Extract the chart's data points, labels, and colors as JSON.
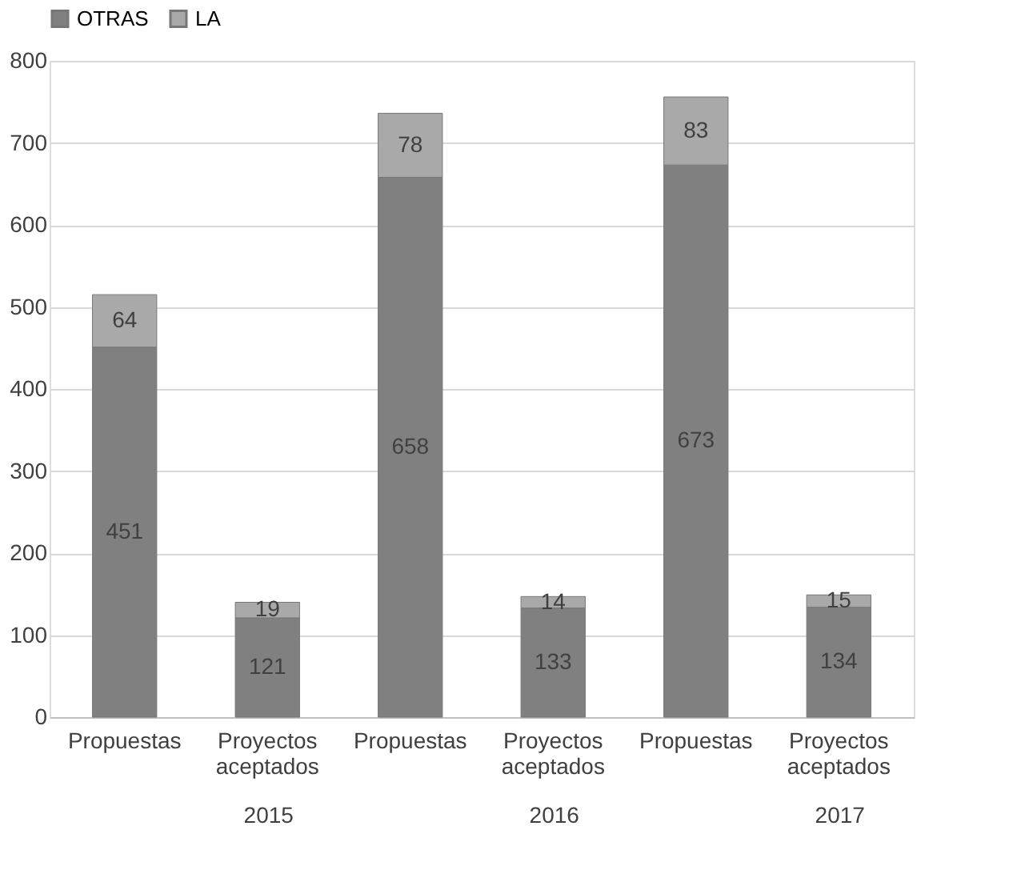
{
  "chart_data": {
    "type": "bar",
    "stacked": true,
    "categories": [
      "Propuestas",
      "Proyectos aceptados",
      "Propuestas",
      "Proyectos aceptados",
      "Propuestas",
      "Proyectos aceptados"
    ],
    "series": [
      {
        "name": "OTRAS",
        "color": "#808080",
        "values": [
          451,
          121,
          658,
          133,
          673,
          134
        ]
      },
      {
        "name": "LA",
        "color": "#a9a9a9",
        "values": [
          64,
          19,
          78,
          14,
          83,
          15
        ]
      }
    ],
    "ylim": [
      0,
      800
    ],
    "yticks": [
      0,
      100,
      200,
      300,
      400,
      500,
      600,
      700,
      800
    ],
    "grid": "y",
    "legend": "top",
    "data_labels": true,
    "annotations": [
      "2015",
      "2016",
      "2017"
    ]
  }
}
